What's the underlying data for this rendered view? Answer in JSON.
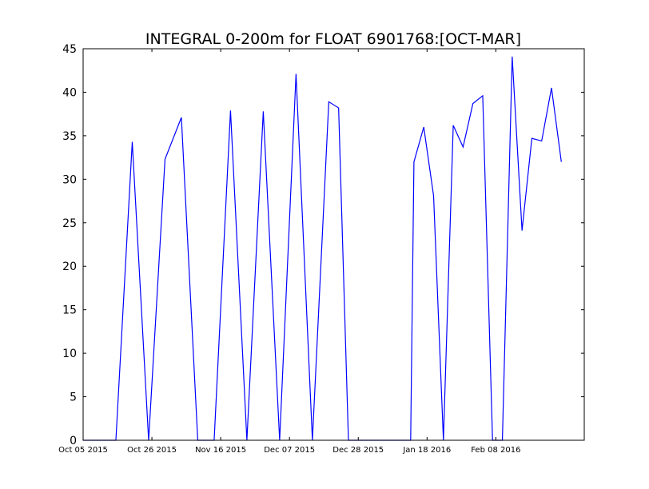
{
  "chart_data": {
    "type": "line",
    "title": "INTEGRAL 0-200m for FLOAT 6901768:[OCT-MAR]",
    "xlabel": "",
    "ylabel": "",
    "ylim": [
      0,
      45
    ],
    "xlim": [
      "2015-10-05",
      "2016-03-06"
    ],
    "yticks": [
      0,
      5,
      10,
      15,
      20,
      25,
      30,
      35,
      40,
      45
    ],
    "xticks": [
      {
        "date": "2015-10-05",
        "label": "Oct 05 2015"
      },
      {
        "date": "2015-10-26",
        "label": "Oct 26 2015"
      },
      {
        "date": "2015-11-16",
        "label": "Nov 16 2015"
      },
      {
        "date": "2015-12-07",
        "label": "Dec 07 2015"
      },
      {
        "date": "2015-12-28",
        "label": "Dec 28 2015"
      },
      {
        "date": "2016-01-18",
        "label": "Jan 18 2016"
      },
      {
        "date": "2016-02-08",
        "label": "Feb 08 2016"
      }
    ],
    "grid": false,
    "series": [
      {
        "color": "#0000ff",
        "x": [
          "2015-10-05",
          "2015-10-15",
          "2015-10-20",
          "2015-10-25",
          "2015-10-30",
          "2015-11-04",
          "2015-11-09",
          "2015-11-14",
          "2015-11-19",
          "2015-11-24",
          "2015-11-29",
          "2015-12-04",
          "2015-12-09",
          "2015-12-14",
          "2015-12-19",
          "2015-12-22",
          "2015-12-25",
          "2016-01-13",
          "2016-01-14",
          "2016-01-17",
          "2016-01-20",
          "2016-01-23",
          "2016-01-26",
          "2016-01-29",
          "2016-02-01",
          "2016-02-04",
          "2016-02-07",
          "2016-02-10",
          "2016-02-13",
          "2016-02-16",
          "2016-02-19",
          "2016-02-22",
          "2016-02-25",
          "2016-02-28"
        ],
        "y": [
          0,
          0,
          34.3,
          0,
          32.3,
          37.1,
          0,
          0,
          37.9,
          0,
          37.8,
          0,
          42.1,
          0,
          38.9,
          38.2,
          0,
          0,
          32,
          36,
          28.1,
          0,
          36.2,
          33.7,
          38.7,
          39.6,
          0,
          0,
          44.1,
          24.1,
          34.7,
          34.4,
          40.5,
          32
        ]
      }
    ]
  }
}
